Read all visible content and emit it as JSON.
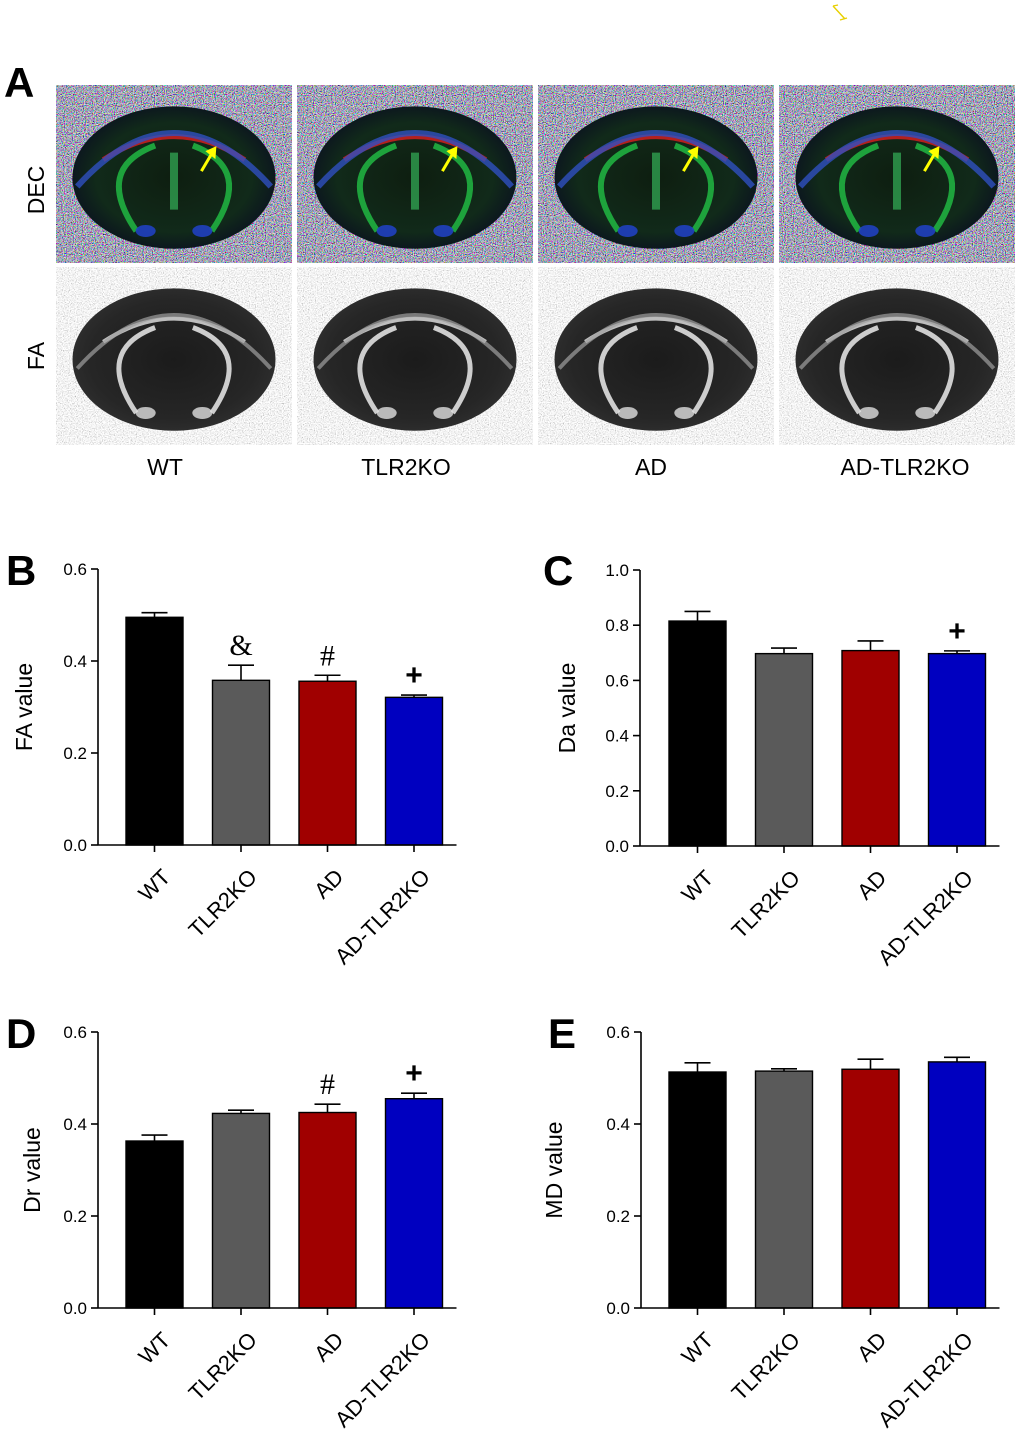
{
  "panel_a": {
    "letter": "A",
    "row_labels": [
      "DEC",
      "FA"
    ],
    "col_labels": [
      "WT",
      "TLR2KO",
      "AD",
      "AD-TLR2KO"
    ],
    "arrow_color": "#ffff00"
  },
  "chart_data": [
    {
      "panel": "B",
      "type": "bar",
      "categories": [
        "WT",
        "TLR2KO",
        "AD",
        "AD-TLR2KO"
      ],
      "values": [
        0.495,
        0.358,
        0.356,
        0.321
      ],
      "errors": [
        0.01,
        0.033,
        0.013,
        0.005
      ],
      "annotations": [
        "",
        "&",
        "#",
        "+"
      ],
      "colors": [
        "#000000",
        "#5a5a5a",
        "#a00000",
        "#0000c0"
      ],
      "ylabel": "FA value",
      "ylim": [
        0,
        0.6
      ],
      "ticks": [
        0.0,
        0.2,
        0.4,
        0.6
      ],
      "tick_labels": [
        "0.0",
        "0.2",
        "0.4",
        "0.6"
      ]
    },
    {
      "panel": "C",
      "type": "bar",
      "categories": [
        "WT",
        "TLR2KO",
        "AD",
        "AD-TLR2KO"
      ],
      "values": [
        0.815,
        0.697,
        0.708,
        0.697
      ],
      "errors": [
        0.035,
        0.02,
        0.035,
        0.01
      ],
      "annotations": [
        "",
        "",
        "",
        "+"
      ],
      "colors": [
        "#000000",
        "#5a5a5a",
        "#a00000",
        "#0000c0"
      ],
      "ylabel": "Da value",
      "ylim": [
        0,
        1.0
      ],
      "ticks": [
        0.0,
        0.2,
        0.4,
        0.6,
        0.8,
        1.0
      ],
      "tick_labels": [
        "0.0",
        "0.2",
        "0.4",
        "0.6",
        "0.8",
        "1.0"
      ]
    },
    {
      "panel": "D",
      "type": "bar",
      "categories": [
        "WT",
        "TLR2KO",
        "AD",
        "AD-TLR2KO"
      ],
      "values": [
        0.363,
        0.423,
        0.425,
        0.455
      ],
      "errors": [
        0.013,
        0.007,
        0.018,
        0.012
      ],
      "annotations": [
        "",
        "",
        "#",
        "+"
      ],
      "colors": [
        "#000000",
        "#5a5a5a",
        "#a00000",
        "#0000c0"
      ],
      "ylabel": "Dr value",
      "ylim": [
        0,
        0.6
      ],
      "ticks": [
        0.0,
        0.2,
        0.4,
        0.6
      ],
      "tick_labels": [
        "0.0",
        "0.2",
        "0.4",
        "0.6"
      ]
    },
    {
      "panel": "E",
      "type": "bar",
      "categories": [
        "WT",
        "TLR2KO",
        "AD",
        "AD-TLR2KO"
      ],
      "values": [
        0.513,
        0.515,
        0.519,
        0.535
      ],
      "errors": [
        0.02,
        0.005,
        0.022,
        0.01
      ],
      "annotations": [
        "",
        "",
        "",
        ""
      ],
      "colors": [
        "#000000",
        "#5a5a5a",
        "#a00000",
        "#0000c0"
      ],
      "ylabel": "MD value",
      "ylim": [
        0,
        0.6
      ],
      "ticks": [
        0.0,
        0.2,
        0.4,
        0.6
      ],
      "tick_labels": [
        "0.0",
        "0.2",
        "0.4",
        "0.6"
      ]
    }
  ]
}
